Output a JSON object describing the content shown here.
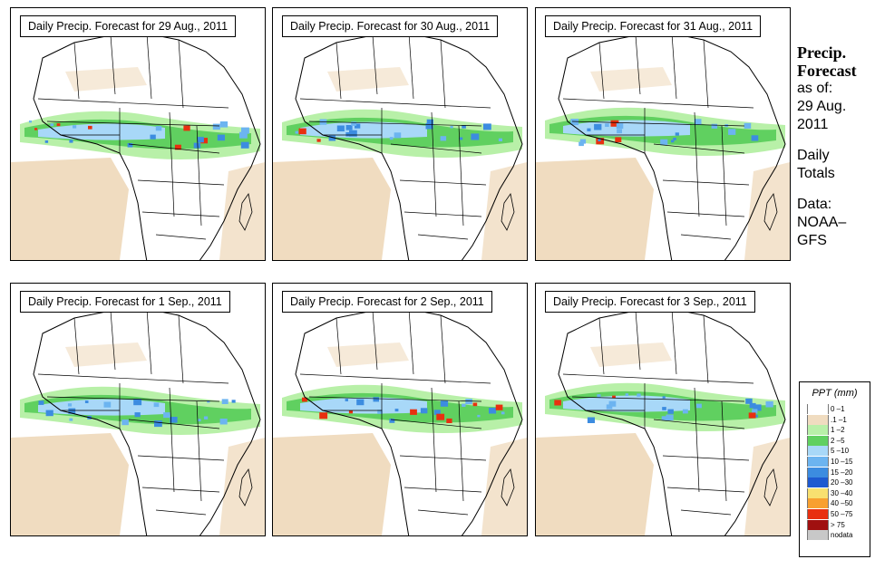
{
  "panels": [
    {
      "title": "Daily Precip. Forecast for  29 Aug., 2011"
    },
    {
      "title": "Daily Precip. Forecast for  30 Aug., 2011"
    },
    {
      "title": "Daily Precip. Forecast for  31 Aug., 2011"
    },
    {
      "title": "Daily Precip. Forecast for  1 Sep., 2011"
    },
    {
      "title": "Daily Precip. Forecast for  2 Sep., 2011"
    },
    {
      "title": "Daily Precip. Forecast for  3 Sep., 2011"
    }
  ],
  "sidebar": {
    "heading_line1": "Precip.",
    "heading_line2": "Forecast",
    "asof_line1": "as of:",
    "asof_line2": "29 Aug.",
    "asof_line3": "2011",
    "totals_line1": "Daily",
    "totals_line2": "Totals",
    "data_line1": "Data:",
    "data_line2": "NOAA–",
    "data_line3": "GFS"
  },
  "legend": {
    "title": "PPT (mm)",
    "items": [
      {
        "label": "0 –1",
        "color": "#ffffff"
      },
      {
        "label": ".1 –1",
        "color": "#f0dcc0"
      },
      {
        "label": "1 –2",
        "color": "#b8f0a8"
      },
      {
        "label": "2 –5",
        "color": "#60d060"
      },
      {
        "label": "5 –10",
        "color": "#a8d8f8"
      },
      {
        "label": "10 –15",
        "color": "#6cb4f0"
      },
      {
        "label": "15 –20",
        "color": "#3c8ce0"
      },
      {
        "label": "20 –30",
        "color": "#1e5ad0"
      },
      {
        "label": "30 –40",
        "color": "#f8e070"
      },
      {
        "label": "40 –50",
        "color": "#f8a030"
      },
      {
        "label": "50 –75",
        "color": "#e83010"
      },
      {
        "label": "> 75",
        "color": "#a01010"
      },
      {
        "label": "nodata",
        "color": "#c8c8c8"
      }
    ]
  },
  "colors": {
    "sand": "#f0dcc0",
    "lightgreen": "#b8f0a8",
    "green": "#60d060",
    "lightblue": "#a8d8f8",
    "blue": "#6cb4f0",
    "darkblue": "#3c8ce0",
    "red": "#e83010"
  }
}
